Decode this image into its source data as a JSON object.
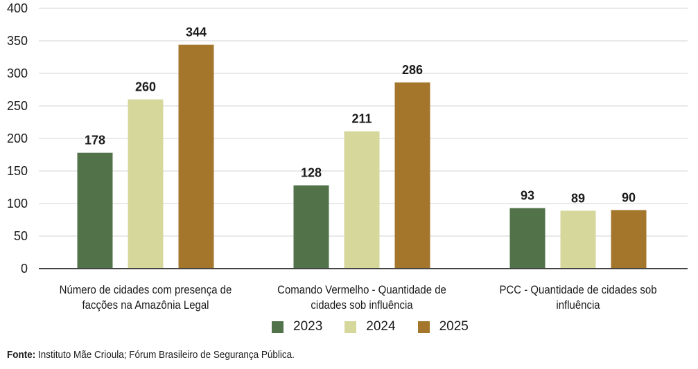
{
  "chart_data": {
    "type": "bar",
    "title": "",
    "xlabel": "",
    "ylabel": "",
    "ylim": [
      0,
      400
    ],
    "yticks": [
      0,
      50,
      100,
      150,
      200,
      250,
      300,
      350,
      400
    ],
    "grid": true,
    "legend_position": "bottom",
    "categories": [
      "Número de cidades com presença de facções na Amazônia Legal",
      "Comando Vermelho - Quantidade de cidades sob influência",
      "PCC - Quantidade de cidades sob influência"
    ],
    "category_lines": [
      [
        "Número de cidades com presença de",
        "facções na Amazônia Legal"
      ],
      [
        "Comando Vermelho - Quantidade de",
        "cidades sob influência"
      ],
      [
        "PCC - Quantidade de cidades sob",
        "influência"
      ]
    ],
    "series": [
      {
        "name": "2023",
        "color": "#52724a",
        "values": [
          178,
          128,
          93
        ]
      },
      {
        "name": "2024",
        "color": "#d6d79b",
        "values": [
          260,
          211,
          89
        ]
      },
      {
        "name": "2025",
        "color": "#a3762c",
        "values": [
          344,
          286,
          90
        ]
      }
    ]
  },
  "footer": {
    "label": "Fonte:",
    "text": " Instituto Mãe Crioula; Fórum Brasileiro de Segurança Pública."
  }
}
